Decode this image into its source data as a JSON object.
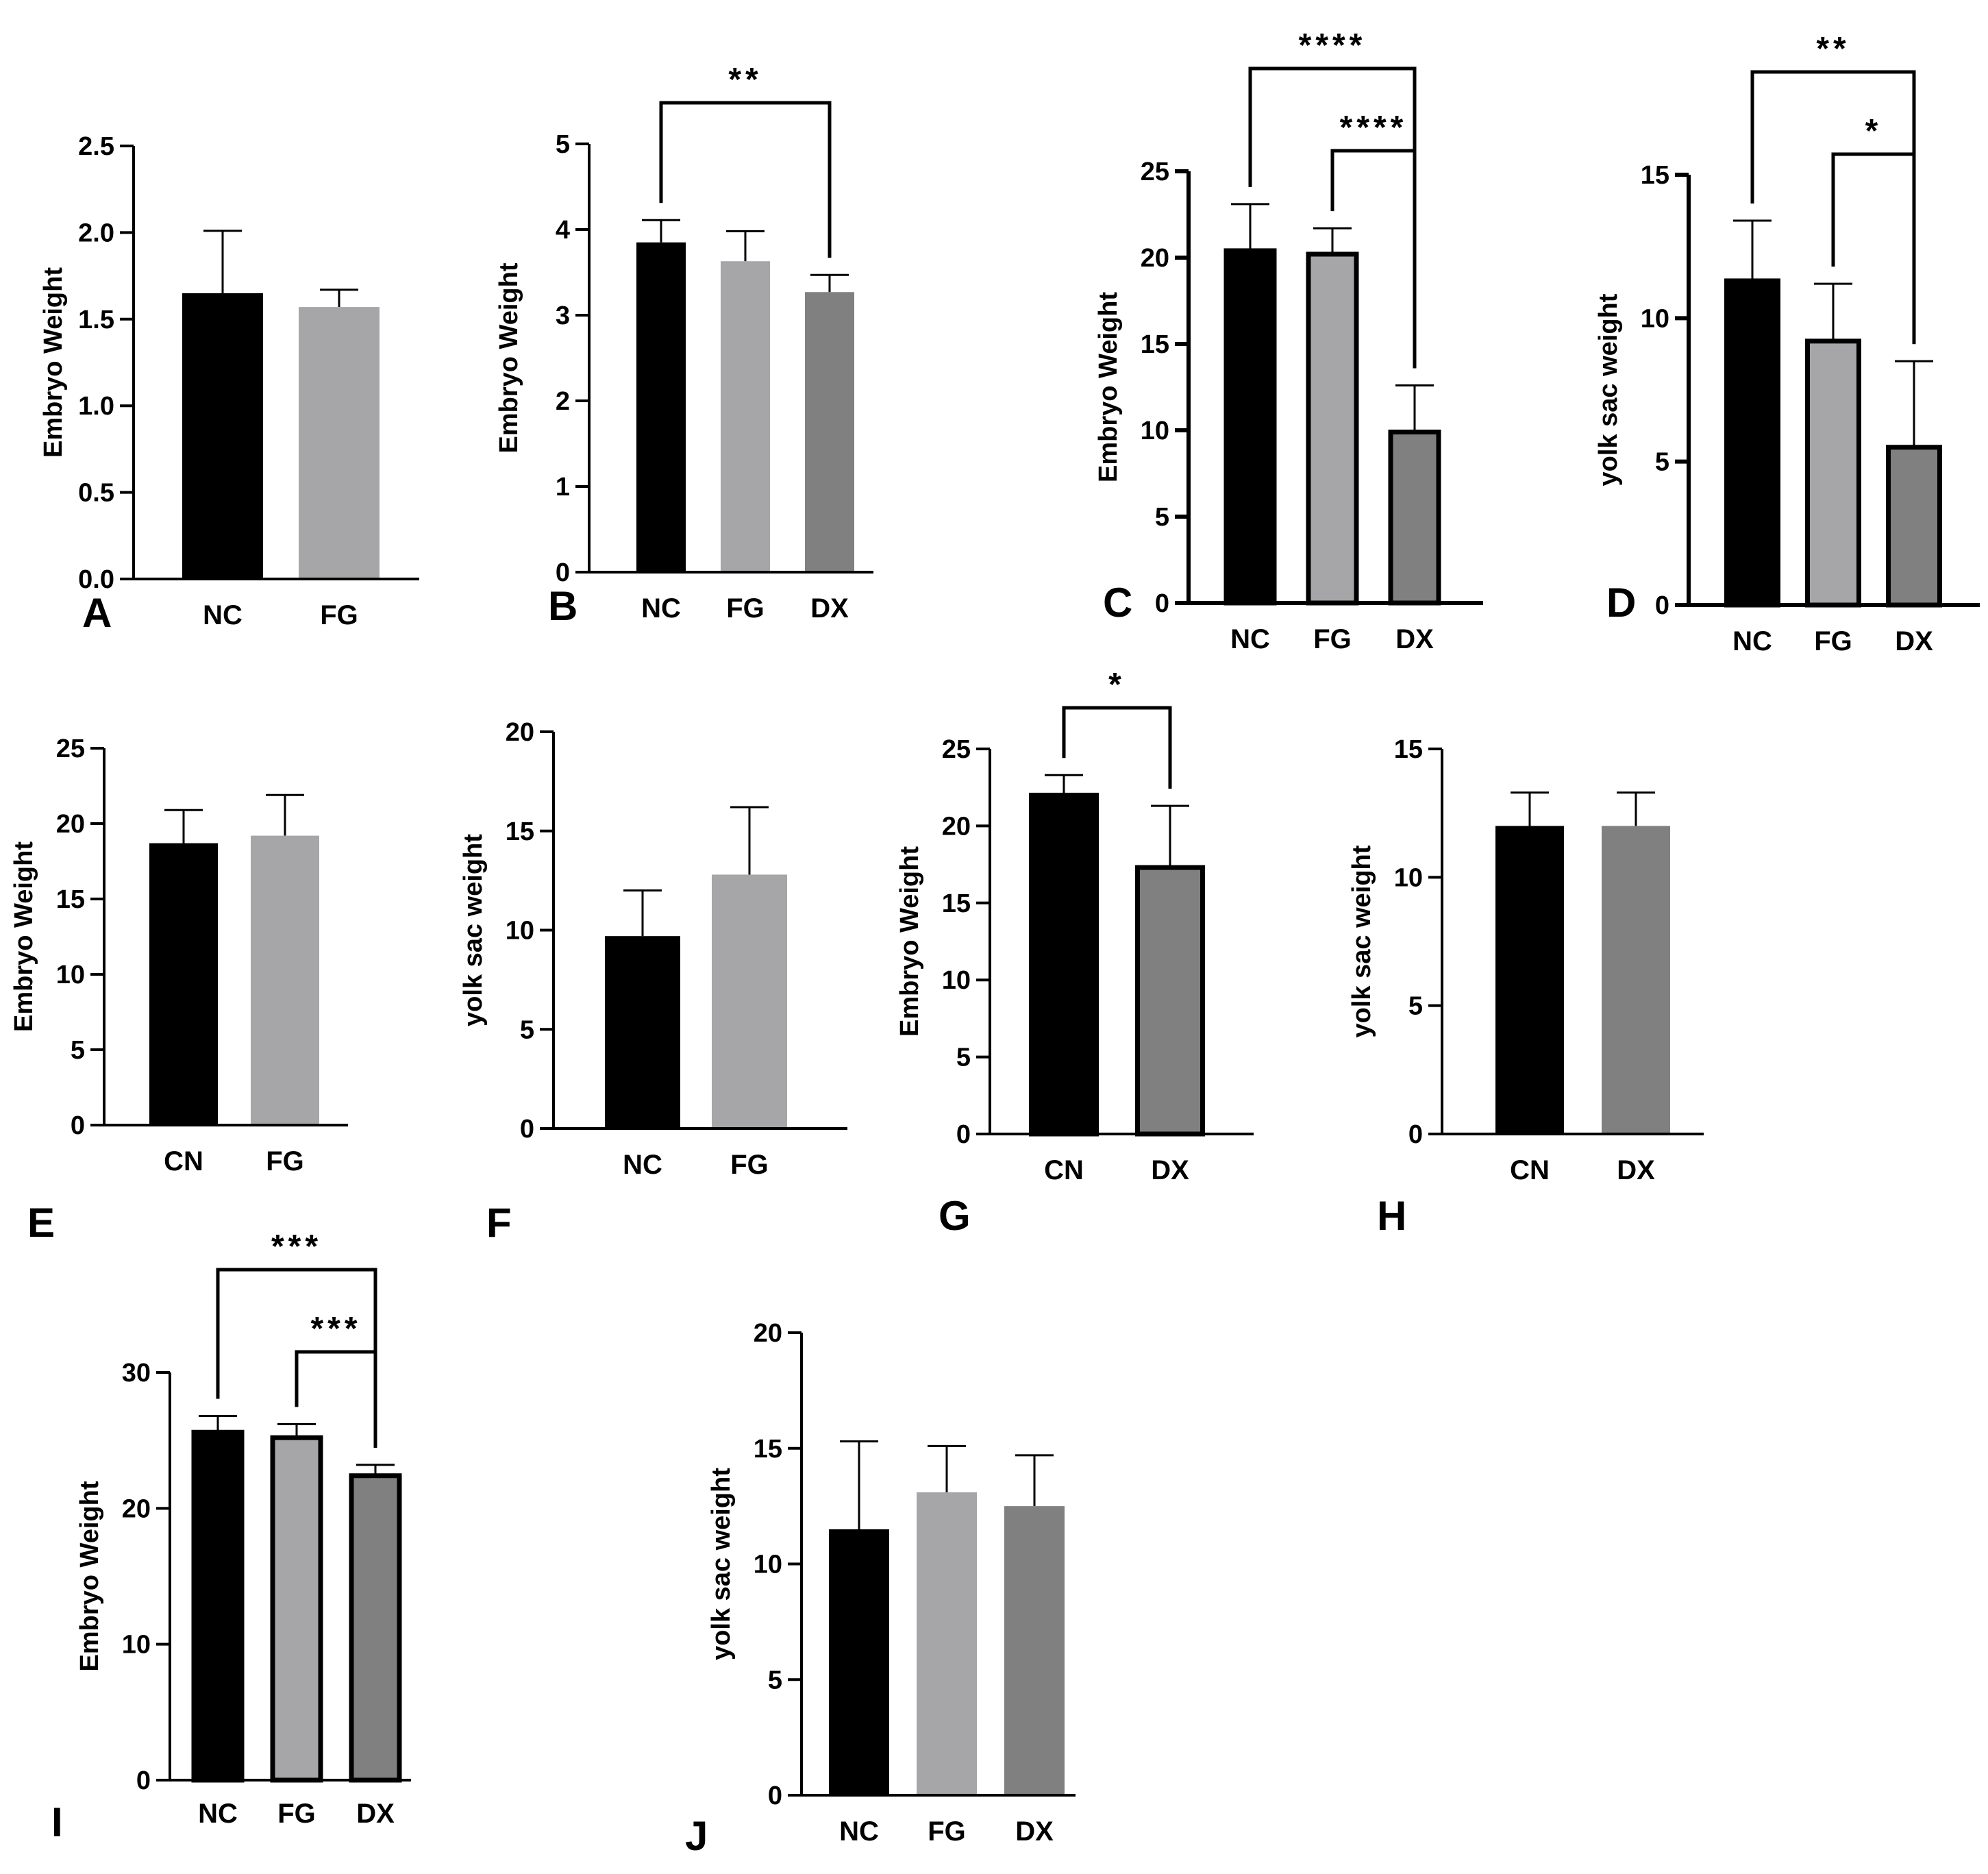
{
  "figure": {
    "title": ""
  },
  "colors": {
    "NC": "#000000",
    "CN": "#000000",
    "FG": "#a6a6a8",
    "DX": "#808080",
    "axis": "#000000",
    "error": "#000000",
    "outline": "#000000"
  },
  "chart_data": [
    {
      "type": "bar",
      "panel": "A",
      "title": "",
      "xlabel": "",
      "ylabel": "Embryo Weight",
      "categories": [
        "NC",
        "FG"
      ],
      "values": [
        1.65,
        1.57
      ],
      "errors": [
        0.36,
        0.1
      ],
      "ylim": [
        0,
        2.5
      ],
      "yticks": [
        "0.0",
        "0.5",
        "1.0",
        "1.5",
        "2.0",
        "2.5"
      ],
      "grid": false,
      "significance": []
    },
    {
      "type": "bar",
      "panel": "B",
      "title": "",
      "xlabel": "",
      "ylabel": "Embryo Weight",
      "categories": [
        "NC",
        "FG",
        "DX"
      ],
      "values": [
        3.85,
        3.63,
        3.27
      ],
      "errors": [
        0.26,
        0.35,
        0.2
      ],
      "ylim": [
        0,
        5
      ],
      "yticks": [
        "0",
        "1",
        "2",
        "3",
        "4",
        "5"
      ],
      "grid": false,
      "significance": [
        {
          "from": "NC",
          "to": "DX",
          "label": "**"
        }
      ]
    },
    {
      "type": "bar",
      "panel": "C",
      "title": "",
      "xlabel": "",
      "ylabel": "Embryo Weight",
      "categories": [
        "NC",
        "FG",
        "DX"
      ],
      "values": [
        20.4,
        20.2,
        9.9
      ],
      "errors": [
        2.7,
        1.5,
        2.7
      ],
      "ylim": [
        0,
        25
      ],
      "yticks": [
        "0",
        "5",
        "10",
        "15",
        "20",
        "25"
      ],
      "grid": false,
      "significance": [
        {
          "from": "NC",
          "to": "DX",
          "label": "****"
        },
        {
          "from": "FG",
          "to": "DX",
          "label": "****"
        }
      ]
    },
    {
      "type": "bar",
      "panel": "D",
      "title": "",
      "xlabel": "",
      "ylabel": "yolk sac weight",
      "categories": [
        "NC",
        "FG",
        "DX"
      ],
      "values": [
        11.3,
        9.2,
        5.5
      ],
      "errors": [
        2.1,
        2.0,
        3.0
      ],
      "ylim": [
        0,
        15
      ],
      "yticks": [
        "0",
        "5",
        "10",
        "15"
      ],
      "grid": false,
      "significance": [
        {
          "from": "NC",
          "to": "DX",
          "label": "**"
        },
        {
          "from": "FG",
          "to": "DX",
          "label": "*"
        }
      ]
    },
    {
      "type": "bar",
      "panel": "E",
      "title": "",
      "xlabel": "",
      "ylabel": "Embryo Weight",
      "categories": [
        "CN",
        "FG"
      ],
      "values": [
        18.7,
        19.2
      ],
      "errors": [
        2.2,
        2.7
      ],
      "ylim": [
        0,
        25
      ],
      "yticks": [
        "0",
        "5",
        "10",
        "15",
        "20",
        "25"
      ],
      "grid": false,
      "significance": []
    },
    {
      "type": "bar",
      "panel": "F",
      "title": "",
      "xlabel": "",
      "ylabel": "yolk sac weight",
      "categories": [
        "NC",
        "FG"
      ],
      "values": [
        9.7,
        12.8
      ],
      "errors": [
        2.3,
        3.4
      ],
      "ylim": [
        0,
        20
      ],
      "yticks": [
        "0",
        "5",
        "10",
        "15",
        "20"
      ],
      "grid": false,
      "significance": []
    },
    {
      "type": "bar",
      "panel": "G",
      "title": "",
      "xlabel": "",
      "ylabel": "Embryo Weight",
      "categories": [
        "CN",
        "DX"
      ],
      "values": [
        22.0,
        17.3
      ],
      "errors": [
        1.3,
        4.0
      ],
      "ylim": [
        0,
        25
      ],
      "yticks": [
        "0",
        "5",
        "10",
        "15",
        "20",
        "25"
      ],
      "grid": false,
      "significance": [
        {
          "from": "CN",
          "to": "DX",
          "label": "*"
        }
      ]
    },
    {
      "type": "bar",
      "panel": "H",
      "title": "",
      "xlabel": "",
      "ylabel": "yolk sac weight",
      "categories": [
        "CN",
        "DX"
      ],
      "values": [
        12.0,
        12.0
      ],
      "errors": [
        1.3,
        1.3
      ],
      "ylim": [
        0,
        15
      ],
      "yticks": [
        "0",
        "5",
        "10",
        "15"
      ],
      "grid": false,
      "significance": []
    },
    {
      "type": "bar",
      "panel": "I",
      "title": "",
      "xlabel": "",
      "ylabel": "Embryo Weight",
      "categories": [
        "NC",
        "FG",
        "DX"
      ],
      "values": [
        25.6,
        25.2,
        22.4
      ],
      "errors": [
        1.2,
        1.0,
        0.8
      ],
      "ylim": [
        0,
        30
      ],
      "yticks": [
        "0",
        "10",
        "20",
        "30"
      ],
      "grid": false,
      "significance": [
        {
          "from": "NC",
          "to": "DX",
          "label": "***"
        },
        {
          "from": "FG",
          "to": "DX",
          "label": "***"
        }
      ]
    },
    {
      "type": "bar",
      "panel": "J",
      "title": "",
      "xlabel": "",
      "ylabel": "yolk sac weight",
      "categories": [
        "NC",
        "FG",
        "DX"
      ],
      "values": [
        11.5,
        13.1,
        12.5
      ],
      "errors": [
        3.8,
        2.0,
        2.2
      ],
      "ylim": [
        0,
        20
      ],
      "yticks": [
        "0",
        "5",
        "10",
        "15",
        "20"
      ],
      "grid": false,
      "significance": []
    }
  ]
}
